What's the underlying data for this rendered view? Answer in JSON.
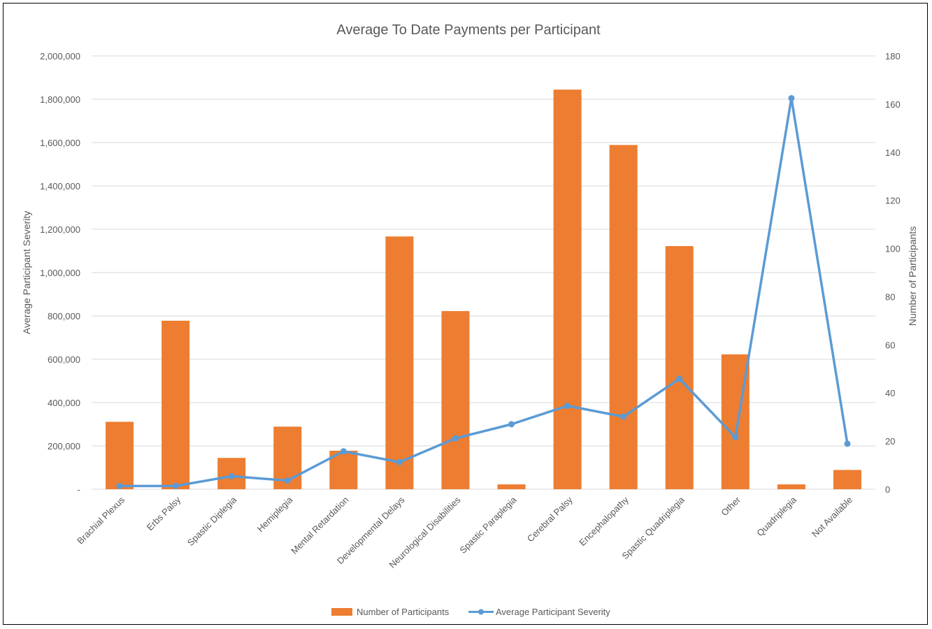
{
  "chart_data": {
    "type": "bar",
    "title": "Average To Date Payments per Participant",
    "categories": [
      "Brachial Plexus",
      "Erbs Palsy",
      "Spastic Diplegia",
      "Hemiplegia",
      "Mental Retardation",
      "Developmental Delays",
      "Neurological Disabilities",
      "Spastic Paraplegia",
      "Cerebral Palsy",
      "Encephalopathy",
      "Spastic Quadriplegia",
      "Other",
      "Quadriplegia",
      "Not Available"
    ],
    "series": [
      {
        "name": "Number of Participants",
        "type": "bar",
        "axis": "right",
        "color": "#ed7d31",
        "values": [
          28,
          70,
          13,
          26,
          16,
          105,
          74,
          2,
          166,
          143,
          101,
          56,
          2,
          8
        ]
      },
      {
        "name": "Average Participant Severity",
        "type": "line",
        "axis": "left",
        "color": "#5b9bd5",
        "values": [
          15000,
          15000,
          60000,
          40000,
          175000,
          125000,
          235000,
          300000,
          385000,
          335000,
          510000,
          240000,
          1805000,
          210000
        ]
      }
    ],
    "ylabel": "Average Participant Severity",
    "ylabel_right": "Number of Participants",
    "ylim": [
      0,
      2000000
    ],
    "ylim_right": [
      0,
      180
    ],
    "yticks_left": [
      "-",
      "200,000",
      "400,000",
      "600,000",
      "800,000",
      "1,000,000",
      "1,200,000",
      "1,400,000",
      "1,600,000",
      "1,800,000",
      "2,000,000"
    ],
    "yticks_right": [
      "0",
      "20",
      "40",
      "60",
      "80",
      "100",
      "120",
      "140",
      "160",
      "180"
    ],
    "grid": true,
    "legend_position": "bottom"
  }
}
